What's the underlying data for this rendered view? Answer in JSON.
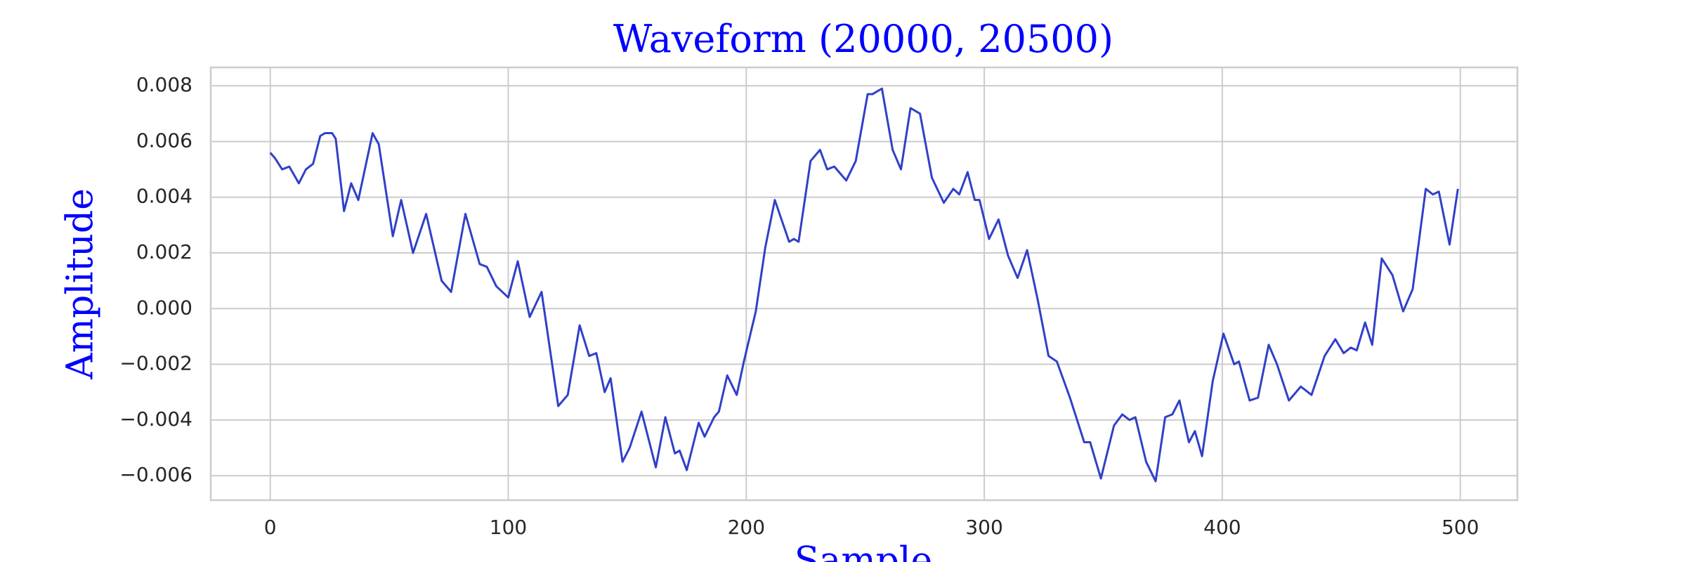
{
  "chart_data": {
    "type": "line",
    "title": "Waveform (20000, 20500)",
    "xlabel": "Sample",
    "ylabel": "Amplitude",
    "grid": true,
    "x": [
      0,
      2,
      5,
      8,
      12,
      15,
      18,
      21,
      23,
      26,
      27.5,
      31,
      34,
      37,
      43,
      45.6,
      51.5,
      55,
      60,
      65.5,
      72,
      76,
      82,
      88,
      91,
      95,
      100,
      104,
      109,
      114,
      121,
      125,
      130,
      134,
      137,
      140.5,
      143,
      148,
      151,
      156,
      162,
      166,
      170,
      172,
      175,
      180,
      182.5,
      186.5,
      188.5,
      192,
      196,
      199,
      204,
      208,
      212,
      218,
      220,
      222,
      227,
      231,
      234,
      237,
      242,
      246,
      251,
      253,
      257,
      261.5,
      265,
      269,
      273,
      278,
      283,
      287,
      289.5,
      293,
      296,
      298,
      302,
      306,
      310,
      314,
      318,
      322.5,
      327,
      330.5,
      336,
      342,
      344.5,
      349,
      354.5,
      358,
      361,
      363.5,
      368,
      372,
      376,
      379,
      382,
      386,
      388.5,
      391.5,
      396,
      400.5,
      405,
      407,
      411.5,
      415,
      419.5,
      423,
      428,
      433,
      437.5,
      443,
      447.5,
      451,
      454,
      456.5,
      460,
      463,
      467,
      471.5,
      476,
      480,
      485.5,
      488.5,
      491,
      495.5,
      499
    ],
    "series": [
      {
        "name": "waveform",
        "color": "#3040c8",
        "values": [
          0.0056,
          0.0054,
          0.005,
          0.0051,
          0.0045,
          0.005,
          0.0052,
          0.0062,
          0.0063,
          0.0063,
          0.0061,
          0.0035,
          0.0045,
          0.0039,
          0.0063,
          0.0059,
          0.0026,
          0.0039,
          0.002,
          0.0034,
          0.001,
          0.0006,
          0.0034,
          0.0016,
          0.0015,
          0.0008,
          0.0004,
          0.0017,
          -0.0003,
          0.0006,
          -0.0035,
          -0.0031,
          -0.0006,
          -0.0017,
          -0.0016,
          -0.003,
          -0.0025,
          -0.0055,
          -0.005,
          -0.0037,
          -0.0057,
          -0.0039,
          -0.0052,
          -0.0051,
          -0.0058,
          -0.0041,
          -0.0046,
          -0.0039,
          -0.0037,
          -0.0024,
          -0.0031,
          -0.0019,
          -0.0001,
          0.0022,
          0.0039,
          0.0024,
          0.0025,
          0.0024,
          0.0053,
          0.0057,
          0.005,
          0.0051,
          0.0046,
          0.0053,
          0.0077,
          0.0077,
          0.0079,
          0.0057,
          0.005,
          0.0072,
          0.007,
          0.0047,
          0.0038,
          0.0043,
          0.0041,
          0.0049,
          0.0039,
          0.0039,
          0.0025,
          0.0032,
          0.0019,
          0.0011,
          0.0021,
          0.0003,
          -0.0017,
          -0.0019,
          -0.0032,
          -0.0048,
          -0.0048,
          -0.0061,
          -0.0042,
          -0.0038,
          -0.004,
          -0.0039,
          -0.0055,
          -0.0062,
          -0.0039,
          -0.0038,
          -0.0033,
          -0.0048,
          -0.0044,
          -0.0053,
          -0.0026,
          -0.0009,
          -0.002,
          -0.0019,
          -0.0033,
          -0.0032,
          -0.0013,
          -0.002,
          -0.0033,
          -0.0028,
          -0.0031,
          -0.0017,
          -0.0011,
          -0.0016,
          -0.0014,
          -0.0015,
          -0.0005,
          -0.0013,
          0.0018,
          0.0012,
          -0.0001,
          0.0007,
          0.0043,
          0.0041,
          0.0042,
          0.0023,
          0.0043
        ]
      }
    ],
    "xlim": [
      -25,
      524
    ],
    "xticks": [
      0,
      100,
      200,
      300,
      400,
      500
    ],
    "ylim": [
      -0.00688,
      0.00866
    ],
    "yticks": [
      {
        "value": -0.006,
        "label": "−0.006"
      },
      {
        "value": -0.004,
        "label": "−0.004"
      },
      {
        "value": -0.002,
        "label": "−0.002"
      },
      {
        "value": 0,
        "label": "0.000"
      },
      0.002,
      0.004,
      0.006,
      0.008
    ]
  }
}
